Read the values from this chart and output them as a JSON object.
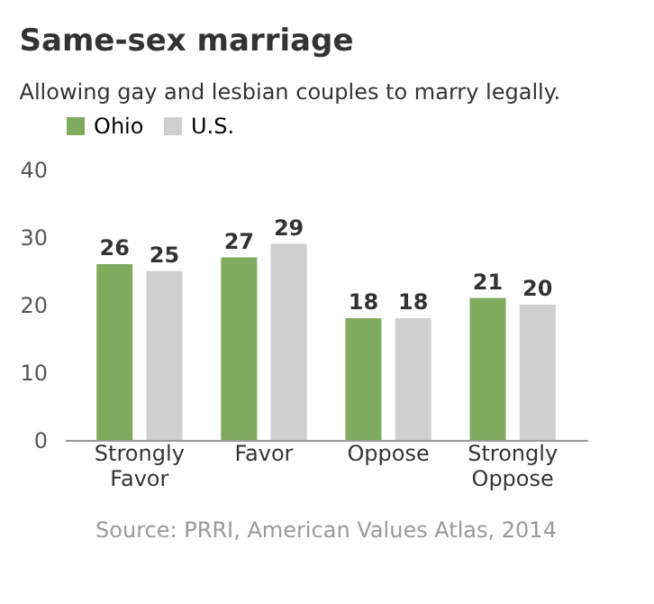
{
  "chart_data": {
    "type": "bar",
    "title": "Same-sex marriage",
    "subtitle": "Allowing gay and lesbian couples to marry legally.",
    "categories": [
      "Strongly Favor",
      "Favor",
      "Oppose",
      "Strongly Oppose"
    ],
    "series": [
      {
        "name": "Ohio",
        "color": "#7fab5e",
        "values": [
          26,
          27,
          18,
          21
        ]
      },
      {
        "name": "U.S.",
        "color": "#cfcfcf",
        "values": [
          25,
          29,
          18,
          20
        ]
      }
    ],
    "ylim": [
      0,
      40
    ],
    "yticks": [
      0,
      10,
      20,
      30,
      40
    ],
    "grid": false,
    "legend": "top",
    "data_labels": true,
    "annotations": [
      "Source: PRRI, American Values Atlas, 2014"
    ]
  }
}
